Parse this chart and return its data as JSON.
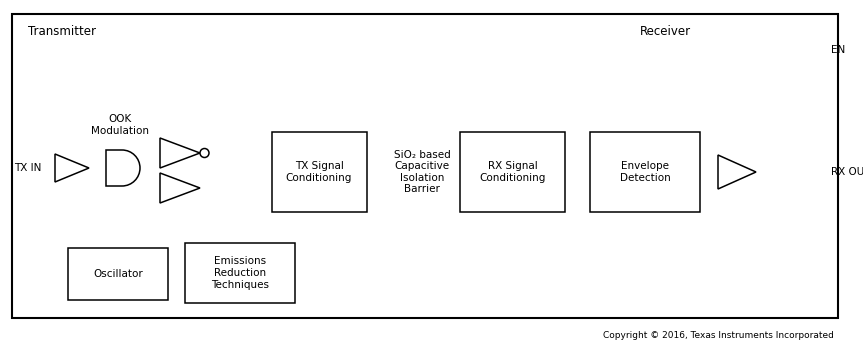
{
  "fig_width": 8.63,
  "fig_height": 3.48,
  "bg_color": "#ffffff",
  "copyright": "Copyright © 2016, Texas Instruments Incorporated",
  "transmitter_label": "Transmitter",
  "receiver_label": "Receiver",
  "tx_in_label": "TX IN",
  "rx_out_label": "RX OUT",
  "en_label": "EN",
  "ook_label": "OOK\nModulation",
  "tx_signal_label": "TX Signal\nConditioning",
  "barrier_label": "SiO₂ based\nCapacitive\nIsolation\nBarrier",
  "rx_signal_label": "RX Signal\nConditioning",
  "envelope_label": "Envelope\nDetection",
  "oscillator_label": "Oscillator",
  "emissions_label": "Emissions\nReduction\nTechniques"
}
